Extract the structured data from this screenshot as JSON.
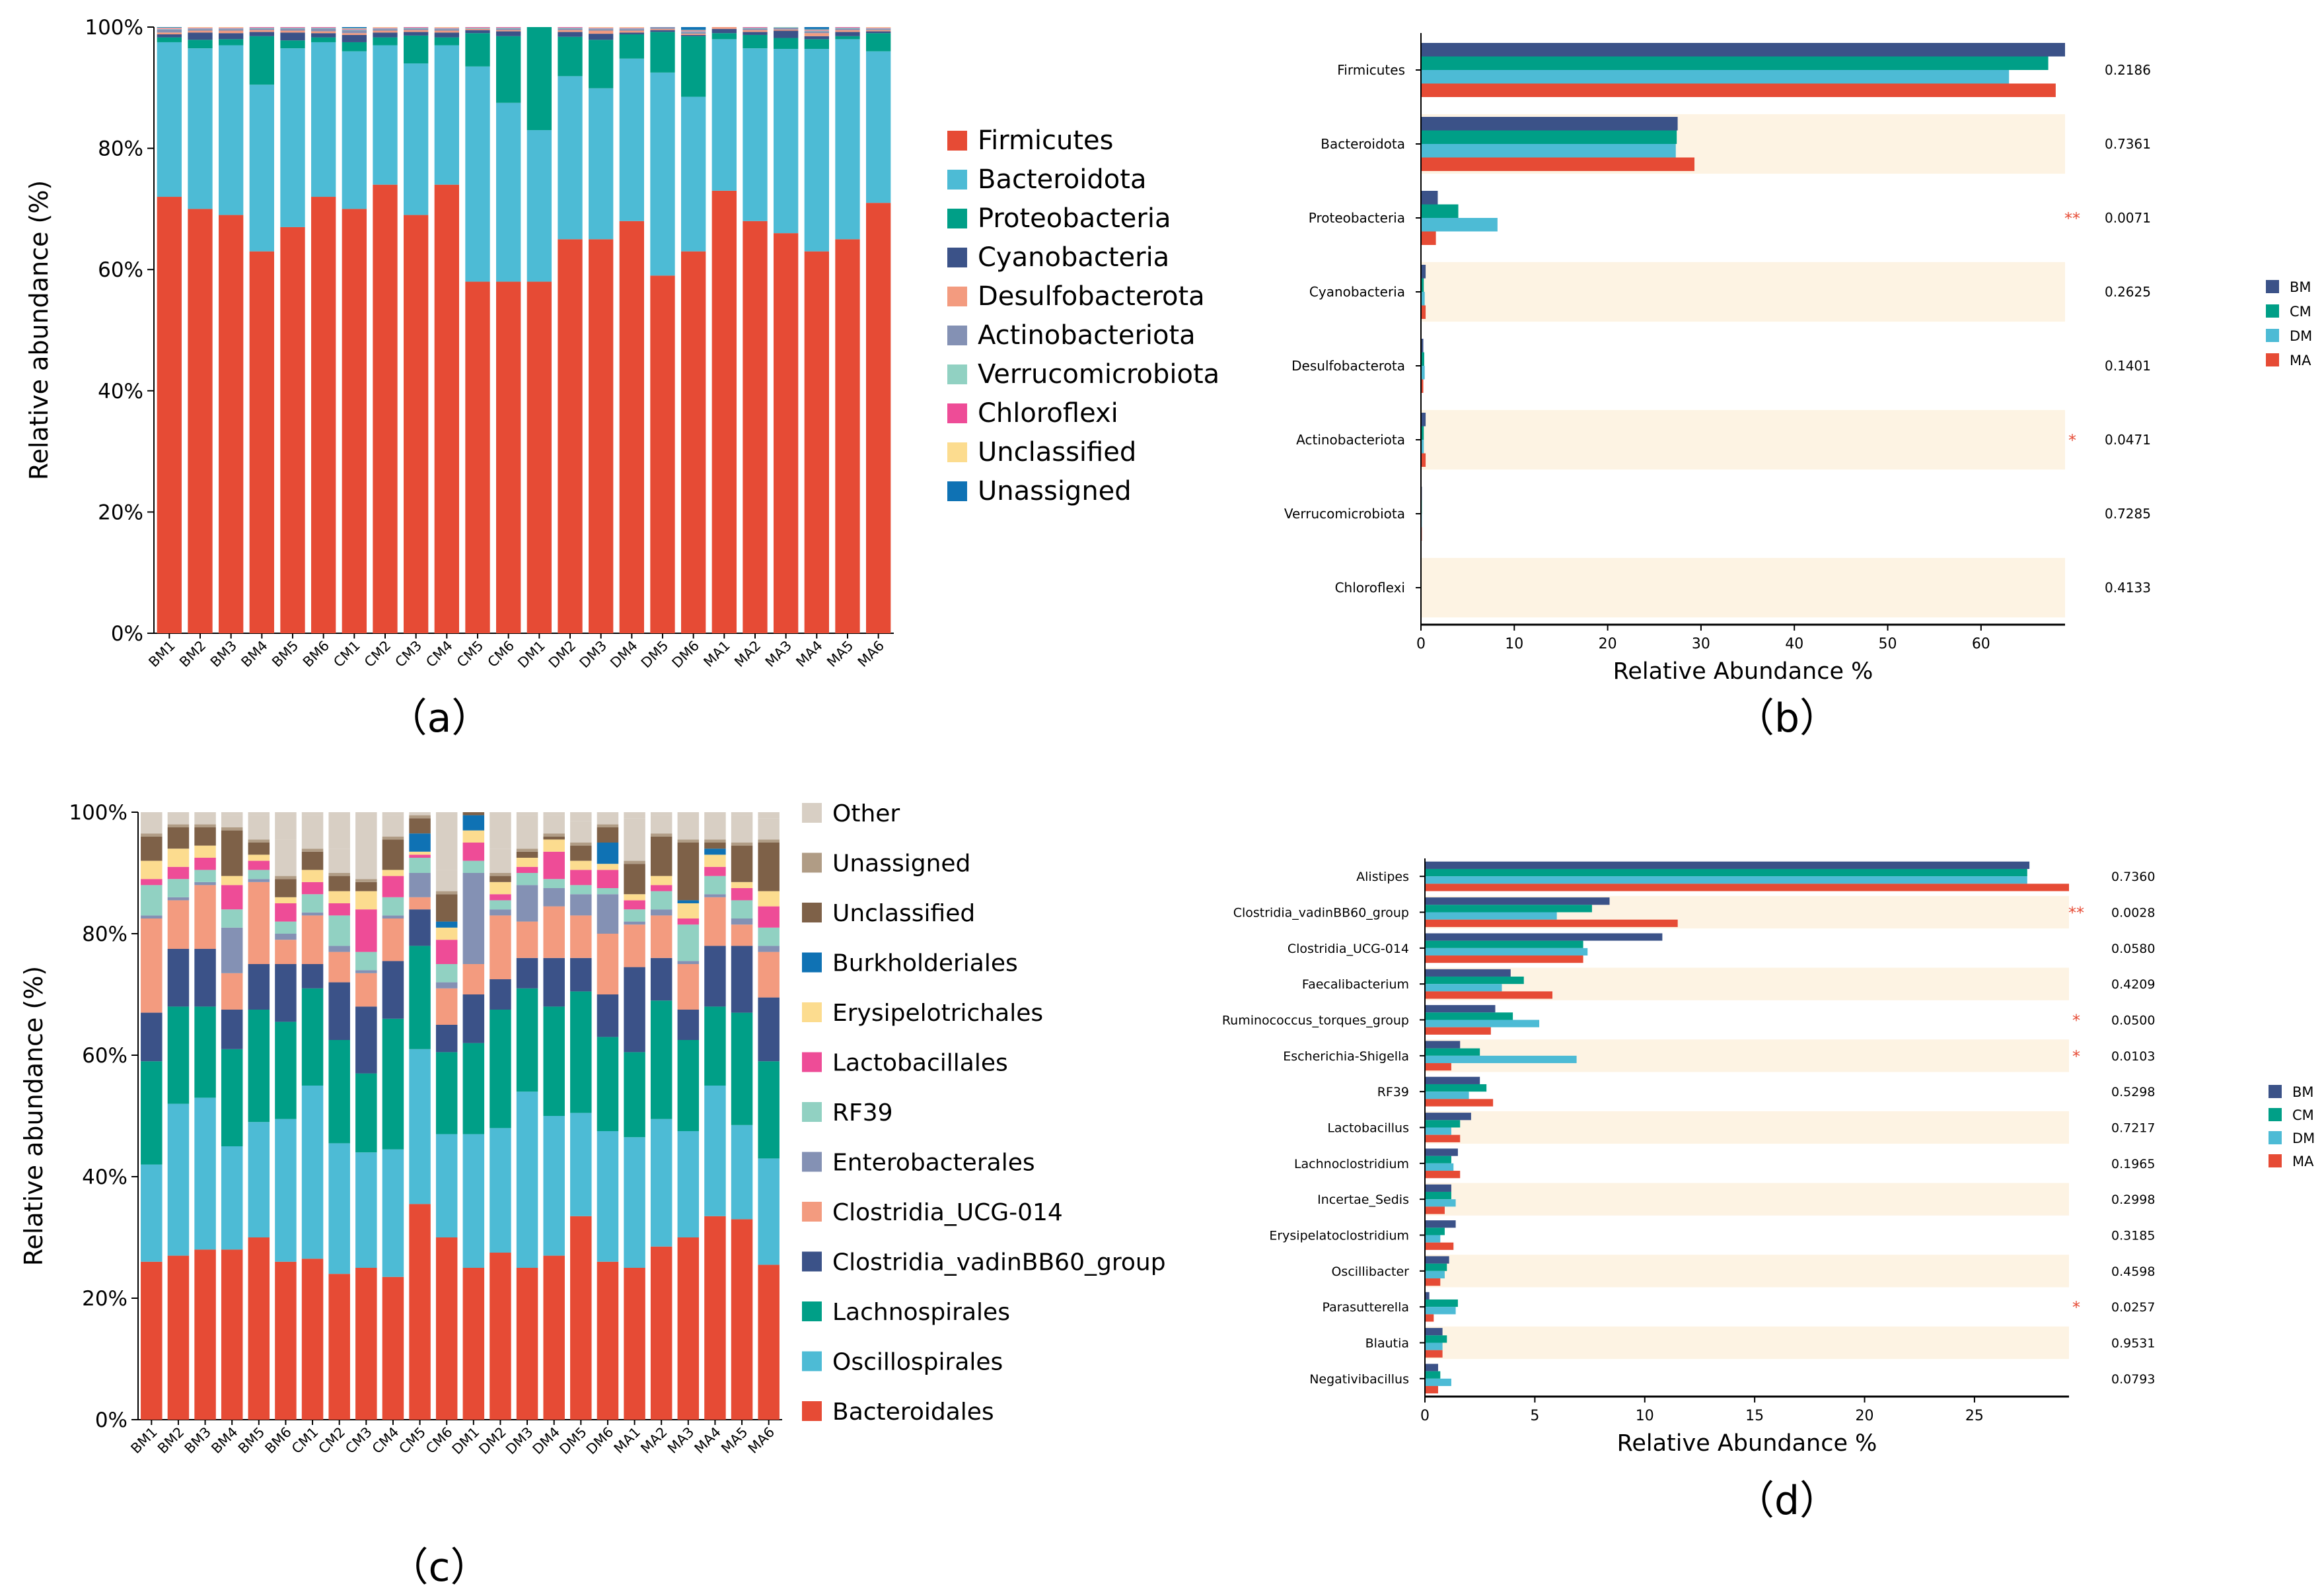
{
  "colors": {
    "BM": "#3b5288",
    "CM": "#009f87",
    "DM": "#4dbbd5",
    "MA": "#e64b35",
    "highlight": "#fdf3e3",
    "significance": "#e64b35"
  },
  "chart_data": [
    {
      "id": "a",
      "panel_label": "（a）",
      "type": "bar",
      "stacked": true,
      "ylabel": "Relative abundance (%)",
      "ylim": [
        0,
        100
      ],
      "ytick_labels": [
        "0%",
        "20%",
        "40%",
        "60%",
        "80%",
        "100%"
      ],
      "legend_position": "right",
      "categories": [
        "BM1",
        "BM2",
        "BM3",
        "BM4",
        "BM5",
        "BM6",
        "CM1",
        "CM2",
        "CM3",
        "CM4",
        "CM5",
        "CM6",
        "DM1",
        "DM2",
        "DM3",
        "DM4",
        "DM5",
        "DM6",
        "MA1",
        "MA2",
        "MA3",
        "MA4",
        "MA5",
        "MA6"
      ],
      "series": [
        {
          "name": "Firmicutes",
          "color": "#e64b35",
          "values": [
            72,
            70,
            69,
            63,
            67,
            72,
            70,
            74,
            69,
            74,
            58,
            58,
            58,
            65,
            65,
            68,
            59,
            63,
            73,
            68,
            66,
            63,
            65,
            71
          ]
        },
        {
          "name": "Bacteroidota",
          "color": "#4dbbd5",
          "values": [
            25.5,
            26.5,
            28,
            27.5,
            29.5,
            25.5,
            26,
            23,
            25,
            23,
            35.5,
            29.5,
            25,
            26.9,
            24.9,
            26.8,
            33.5,
            25.5,
            25,
            28.5,
            30.4,
            33.4,
            33,
            25
          ]
        },
        {
          "name": "Proteobacteria",
          "color": "#009f87",
          "values": [
            0.8,
            1.4,
            1,
            8,
            1.3,
            0.8,
            1.5,
            1.3,
            4.6,
            1.3,
            5.5,
            11,
            17,
            6.5,
            8,
            4,
            6.7,
            10,
            1,
            2.2,
            1.8,
            1.6,
            0.5,
            3
          ]
        },
        {
          "name": "Cyanobacteria",
          "color": "#3b5288",
          "values": [
            0.5,
            1.2,
            1,
            0.7,
            1.3,
            0.7,
            1.2,
            0.8,
            0.6,
            0.8,
            0.5,
            0.8,
            0,
            0.8,
            1,
            0.3,
            0.3,
            0.2,
            0.7,
            0.5,
            1.2,
            0.5,
            0.7,
            0.3
          ]
        },
        {
          "name": "Desulfobacterota",
          "color": "#f39b7f",
          "values": [
            0.3,
            0.3,
            0.4,
            0.3,
            0.3,
            0.3,
            0.3,
            0.3,
            0.3,
            0.3,
            0.2,
            0.2,
            0.2,
            0.3,
            0.5,
            0.3,
            0.2,
            0.2,
            0.3,
            0.3,
            0.2,
            0.5,
            0.3,
            0.2
          ]
        },
        {
          "name": "Actinobacteriota",
          "color": "#8491b4",
          "values": [
            0.5,
            0.3,
            0.3,
            0.3,
            0.4,
            0.5,
            0.5,
            0.3,
            0.3,
            0.3,
            0.1,
            0.3,
            0.3,
            0.3,
            0.3,
            0.3,
            0.3,
            0.3,
            0.3,
            0.3,
            0.3,
            0.3,
            0.3,
            0.2
          ]
        },
        {
          "name": "Verrucomicrobiota",
          "color": "#91d1c2",
          "values": [
            0.1,
            0.1,
            0.1,
            0.1,
            0.1,
            0.1,
            0.1,
            0.1,
            0.1,
            0.1,
            0.1,
            0.1,
            0.1,
            0.1,
            0.1,
            0.1,
            0.1,
            0.1,
            0.1,
            0.1,
            0.1,
            0.1,
            0.1,
            0.1
          ]
        },
        {
          "name": "Chloroflexi",
          "color": "#ee4c97",
          "values": [
            0.1,
            0.1,
            0.1,
            0.1,
            0.1,
            0.1,
            0.1,
            0.1,
            0.1,
            0.1,
            0.1,
            0.1,
            0.1,
            0.1,
            0.1,
            0.1,
            0.1,
            0.1,
            0.1,
            0.1,
            0.1,
            0.1,
            0.1,
            0.1
          ]
        },
        {
          "name": "Unclassified",
          "color": "#fcdc8f",
          "values": [
            0.1,
            0.1,
            0.1,
            0.1,
            0.1,
            0.1,
            0.1,
            0.1,
            0.1,
            0.1,
            0.1,
            0.1,
            0.1,
            0.1,
            0.1,
            0.1,
            0.1,
            0.1,
            0.1,
            0.1,
            0.1,
            0.1,
            0.1,
            0.1
          ]
        },
        {
          "name": "Unassigned",
          "color": "#0f72b4",
          "values": [
            0.1,
            0.1,
            0.1,
            0.1,
            0.1,
            0.1,
            0.1,
            0.1,
            0.1,
            0.1,
            0.1,
            0.1,
            0.1,
            0.1,
            0.1,
            0.1,
            0.1,
            0.1,
            0.1,
            0.1,
            0.1,
            0.1,
            0.1,
            0.1
          ]
        }
      ]
    },
    {
      "id": "b",
      "panel_label": "（b）",
      "type": "bar",
      "orientation": "horizontal",
      "xlabel": "Relative Abundance %",
      "xlim": [
        0,
        69
      ],
      "xticks": [
        0,
        10,
        20,
        30,
        40,
        50,
        60
      ],
      "groups": [
        "BM",
        "CM",
        "DM",
        "MA"
      ],
      "categories": [
        "Firmicutes",
        "Bacteroidota",
        "Proteobacteria",
        "Cyanobacteria",
        "Desulfobacterota",
        "Actinobacteriota",
        "Verrucomicrobiota",
        "Chloroflexi"
      ],
      "values": {
        "BM": [
          69,
          27.5,
          1.8,
          0.5,
          0.25,
          0.5,
          0.1,
          0.05
        ],
        "CM": [
          67.2,
          27.4,
          4,
          0.3,
          0.35,
          0.3,
          0.1,
          0.05
        ],
        "DM": [
          63,
          27.3,
          8.2,
          0.4,
          0.4,
          0.3,
          0.1,
          0.05
        ],
        "MA": [
          68,
          29.3,
          1.6,
          0.5,
          0.25,
          0.5,
          0.1,
          0.05
        ]
      },
      "p_values": [
        "0.2186",
        "0.7361",
        "0.0071",
        "0.2625",
        "0.1401",
        "0.0471",
        "0.7285",
        "0.4133"
      ],
      "significance": [
        "",
        "",
        "**",
        "",
        "",
        "*",
        "",
        ""
      ],
      "legend_position": "right"
    },
    {
      "id": "c",
      "panel_label": "（c）",
      "type": "bar",
      "stacked": true,
      "ylabel": "Relative abundance (%)",
      "ylim": [
        0,
        100
      ],
      "ytick_labels": [
        "0%",
        "20%",
        "40%",
        "60%",
        "80%",
        "100%"
      ],
      "legend_position": "right",
      "categories": [
        "BM1",
        "BM2",
        "BM3",
        "BM4",
        "BM5",
        "BM6",
        "CM1",
        "CM2",
        "CM3",
        "CM4",
        "CM5",
        "CM6",
        "DM1",
        "DM2",
        "DM3",
        "DM4",
        "DM5",
        "DM6",
        "MA1",
        "MA2",
        "MA3",
        "MA4",
        "MA5",
        "MA6"
      ],
      "series": [
        {
          "name": "Bacteroidales",
          "color": "#e64b35",
          "values": [
            26,
            27,
            28,
            28,
            30,
            26,
            26.5,
            24,
            25,
            23.5,
            35.5,
            30,
            25,
            27.5,
            25,
            27,
            33.5,
            26,
            25,
            28.5,
            30,
            33.5,
            33,
            25.5
          ]
        },
        {
          "name": "Oscillospirales",
          "color": "#4dbbd5",
          "values": [
            16,
            25,
            25,
            17,
            19,
            23.5,
            28.5,
            21.5,
            19,
            21,
            25.5,
            17,
            22,
            20.5,
            29,
            23,
            17,
            21.5,
            21.5,
            21,
            17.5,
            21.5,
            15.5,
            17.5
          ]
        },
        {
          "name": "Lachnospirales",
          "color": "#009f87",
          "values": [
            17,
            16,
            15,
            16,
            18.5,
            16,
            16,
            17,
            13,
            21.5,
            17,
            13.5,
            15,
            19.5,
            17,
            18,
            20,
            15.5,
            14,
            19.5,
            15,
            13,
            18.5,
            16
          ]
        },
        {
          "name": "Clostridia_vadinBB60_group",
          "color": "#3b5288",
          "values": [
            8,
            9.5,
            9.5,
            6.5,
            7.5,
            9.5,
            4,
            9.5,
            11,
            9.5,
            6,
            4.5,
            8,
            5,
            5,
            8,
            5.5,
            7,
            14,
            7,
            5,
            10,
            11,
            10.5
          ]
        },
        {
          "name": "Clostridia_UCG-014",
          "color": "#f39b7f",
          "values": [
            15.5,
            8,
            10.5,
            6,
            13.5,
            4,
            8,
            5,
            5.5,
            7,
            2,
            6,
            5,
            10.5,
            6,
            8.5,
            7,
            10,
            7,
            7,
            7.5,
            8,
            3.5,
            7.5
          ]
        },
        {
          "name": "Enterobacterales",
          "color": "#8491b4",
          "values": [
            0.5,
            0.5,
            0.5,
            7.5,
            0.5,
            1,
            0.5,
            1,
            0.5,
            0.5,
            4,
            1,
            15,
            1,
            6,
            3,
            3.5,
            6.5,
            0.5,
            1,
            0.5,
            0.5,
            1,
            1
          ]
        },
        {
          "name": "RF39",
          "color": "#91d1c2",
          "values": [
            5,
            3,
            2,
            3,
            1.5,
            2,
            3,
            5,
            3,
            3,
            2.5,
            3,
            2,
            1.5,
            2,
            1.5,
            1.5,
            1,
            2,
            3,
            6,
            3,
            3,
            3
          ]
        },
        {
          "name": "Lactobacillales",
          "color": "#ee4c97",
          "values": [
            1,
            2,
            2,
            4,
            1.5,
            3,
            2,
            2,
            7,
            3.5,
            0.5,
            4,
            3,
            1,
            1,
            4.5,
            2.5,
            3,
            1.5,
            1,
            1,
            1.5,
            2,
            3.5
          ]
        },
        {
          "name": "Erysipelotrichales",
          "color": "#fcdc8f",
          "values": [
            3,
            3,
            2,
            1.5,
            1,
            1,
            2,
            2,
            3,
            1,
            0.5,
            2,
            2,
            2,
            1.5,
            2,
            1.5,
            1,
            1,
            1.5,
            2.5,
            2,
            1,
            2.5
          ]
        },
        {
          "name": "Burkholderiales",
          "color": "#0f72b4",
          "values": [
            0,
            0,
            0,
            0,
            0,
            0,
            0,
            0,
            0,
            0,
            3,
            1,
            2.5,
            0,
            0,
            0,
            0,
            3.5,
            0,
            0,
            0.5,
            1,
            0,
            0
          ]
        },
        {
          "name": "Unclassified",
          "color": "#7e6148",
          "values": [
            4,
            3.5,
            3,
            7.5,
            2,
            3,
            3,
            2.5,
            1.5,
            5,
            2.5,
            4.5,
            1,
            1,
            1,
            0.5,
            2.5,
            2.5,
            5,
            6.5,
            9.5,
            1,
            6,
            8
          ]
        },
        {
          "name": "Unassigned",
          "color": "#b09c85",
          "values": [
            0.5,
            0.5,
            0.5,
            0.5,
            0.5,
            0.5,
            0.5,
            0.5,
            0.5,
            0.5,
            0.5,
            0.5,
            0.5,
            0.5,
            0.5,
            0.5,
            0.5,
            0.5,
            0.5,
            0.5,
            0.5,
            0.5,
            0.5,
            0.5
          ]
        },
        {
          "name": "Other",
          "color": "#d8cfc4",
          "values": [
            3.5,
            2,
            2,
            2,
            4,
            6,
            5.5,
            4,
            6,
            3.5,
            0.5,
            3.5,
            2,
            4,
            5.5,
            3,
            3.5,
            3,
            7,
            3,
            5,
            4.5,
            4.5,
            3.5
          ]
        }
      ]
    },
    {
      "id": "d",
      "panel_label": "（d）",
      "type": "bar",
      "orientation": "horizontal",
      "xlabel": "Relative Abundance %",
      "xlim": [
        0,
        29.3
      ],
      "xticks": [
        0,
        5,
        10,
        15,
        20,
        25
      ],
      "groups": [
        "BM",
        "CM",
        "DM",
        "MA"
      ],
      "categories": [
        "Alistipes",
        "Clostridia_vadinBB60_group",
        "Clostridia_UCG-014",
        "Faecalibacterium",
        "Ruminococcus_torques_group",
        "Escherichia-Shigella",
        "RF39",
        "Lactobacillus",
        "Lachnoclostridium",
        "Incertae_Sedis",
        "Erysipelatoclostridium",
        "Oscillibacter",
        "Parasutterella",
        "Blautia",
        "Negativibacillus"
      ],
      "values": {
        "BM": [
          27.5,
          8.4,
          10.8,
          3.9,
          3.2,
          1.6,
          2.5,
          2.1,
          1.5,
          1.2,
          1.4,
          1.1,
          0.2,
          0.8,
          0.6
        ],
        "CM": [
          27.4,
          7.6,
          7.2,
          4.5,
          4,
          2.5,
          2.8,
          1.6,
          1.2,
          1.2,
          0.9,
          1.0,
          1.5,
          1.0,
          0.7
        ],
        "DM": [
          27.4,
          6,
          7.4,
          3.5,
          5.2,
          6.9,
          2,
          1.2,
          1.3,
          1.4,
          0.7,
          0.9,
          1.4,
          0.8,
          1.2
        ],
        "MA": [
          29.3,
          11.5,
          7.2,
          5.8,
          3,
          1.2,
          3.1,
          1.6,
          1.6,
          0.9,
          1.3,
          0.7,
          0.4,
          0.8,
          0.6
        ]
      },
      "p_values": [
        "0.7360",
        "0.0028",
        "0.0580",
        "0.4209",
        "0.0500",
        "0.0103",
        "0.5298",
        "0.7217",
        "0.1965",
        "0.2998",
        "0.3185",
        "0.4598",
        "0.0257",
        "0.9531",
        "0.0793"
      ],
      "significance": [
        "",
        "**",
        "",
        "",
        "*",
        "*",
        "",
        "",
        "",
        "",
        "",
        "",
        "*",
        "",
        ""
      ],
      "legend_position": "right"
    }
  ]
}
